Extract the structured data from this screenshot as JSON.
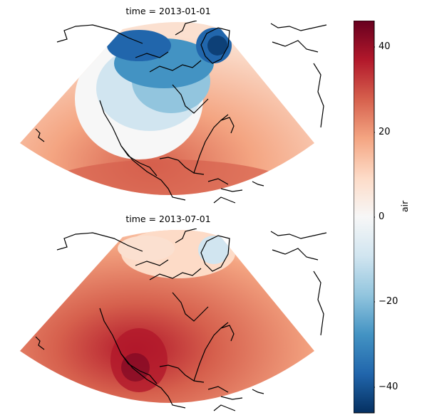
{
  "panels": [
    {
      "title": "time = 2013-01-01"
    },
    {
      "title": "time = 2013-07-01"
    }
  ],
  "colorbar": {
    "label": "air",
    "range": [
      -47,
      47
    ],
    "ticks": [
      "40",
      "20",
      "0",
      "−20",
      "−40"
    ],
    "cmap": "RdBu_r",
    "colors": [
      "#053061",
      "#2166ac",
      "#4393c3",
      "#92c5de",
      "#d1e5f0",
      "#f7f7f7",
      "#fddbc7",
      "#f4a582",
      "#d6604d",
      "#b2182b",
      "#67001f"
    ]
  },
  "chart_data": {
    "type": "heatmap",
    "variable": "air",
    "facets": [
      "time = 2013-01-01",
      "time = 2013-07-01"
    ],
    "colorbar_ticks": [
      40,
      20,
      0,
      -20,
      -40
    ]
  }
}
